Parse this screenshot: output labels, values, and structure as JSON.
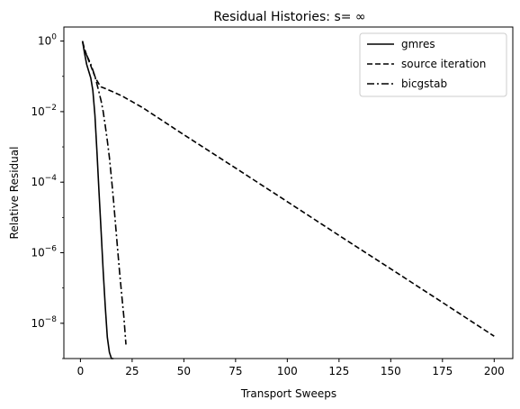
{
  "chart_data": {
    "type": "line",
    "title": "Residual Histories: s= ∞",
    "xlabel": "Transport Sweeps",
    "ylabel": "Relative Residual",
    "xlim": [
      -8,
      209
    ],
    "ylim": [
      1e-09,
      2.5
    ],
    "yscale": "log",
    "xticks": [
      0,
      25,
      50,
      75,
      100,
      125,
      150,
      175,
      200
    ],
    "yticks": [
      {
        "value": 1,
        "base": "10",
        "exp": "0"
      },
      {
        "value": 0.01,
        "base": "10",
        "exp": "−2"
      },
      {
        "value": 0.0001,
        "base": "10",
        "exp": "−4"
      },
      {
        "value": 1e-06,
        "base": "10",
        "exp": "−6"
      },
      {
        "value": 1e-08,
        "base": "10",
        "exp": "−8"
      }
    ],
    "grid": false,
    "legend_position": "top-right",
    "series": [
      {
        "name": "gmres",
        "style": "solid",
        "color": "#000000",
        "x": [
          1,
          2,
          3,
          4,
          5,
          6,
          7,
          8,
          9,
          10,
          11,
          12,
          13,
          14,
          15,
          16
        ],
        "y": [
          1.0,
          0.45,
          0.22,
          0.14,
          0.09,
          0.04,
          0.008,
          0.0007,
          5e-05,
          4e-06,
          3e-07,
          3e-08,
          4e-09,
          1.5e-09,
          1e-09,
          1e-09
        ]
      },
      {
        "name": "source iteration",
        "style": "dashed",
        "color": "#000000",
        "x": [
          1,
          2,
          3,
          4,
          5,
          6,
          7,
          8,
          9,
          10,
          12,
          15,
          20,
          30,
          50,
          75,
          100,
          125,
          150,
          175,
          200
        ],
        "y": [
          0.95,
          0.6,
          0.4,
          0.28,
          0.2,
          0.14,
          0.1,
          0.075,
          0.06,
          0.05,
          0.045,
          0.038,
          0.028,
          0.013,
          0.0022,
          0.00025,
          2.8e-05,
          3.1e-06,
          3.5e-07,
          3.9e-08,
          4.3e-09
        ]
      },
      {
        "name": "bicgstab",
        "style": "dashdot",
        "color": "#000000",
        "x": [
          1,
          2,
          3,
          4,
          5,
          6,
          7,
          8,
          9,
          10,
          11,
          12,
          13,
          14,
          15,
          16,
          17,
          18,
          19,
          20,
          21,
          22
        ],
        "y": [
          1.0,
          0.55,
          0.4,
          0.3,
          0.22,
          0.15,
          0.1,
          0.06,
          0.035,
          0.02,
          0.01,
          0.004,
          0.0015,
          0.0005,
          0.00013,
          3e-05,
          6e-06,
          1.2e-06,
          2.5e-07,
          6e-08,
          1.5e-08,
          2.5e-09
        ]
      }
    ]
  }
}
